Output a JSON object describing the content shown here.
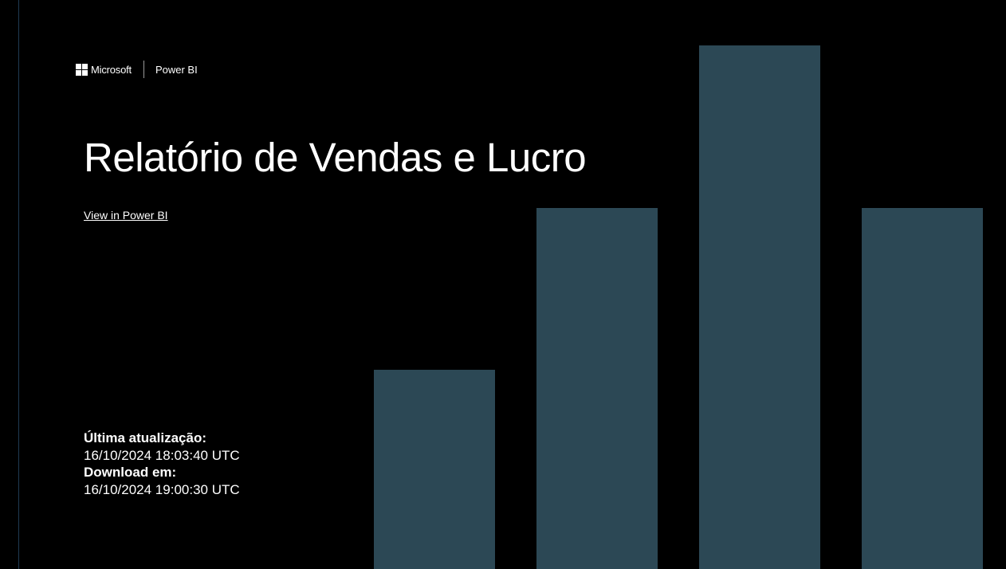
{
  "header": {
    "microsoft_label": "Microsoft",
    "product_label": "Power BI"
  },
  "report": {
    "title": "Relatório de Vendas e Lucro",
    "view_link_label": "View in Power BI"
  },
  "meta": {
    "last_refresh_label": "Última atualização:",
    "last_refresh_value": "16/10/2024 18:03:40 UTC",
    "download_label": "Download em:",
    "download_value": "16/10/2024 19:00:30 UTC"
  },
  "colors": {
    "background": "#000000",
    "bar": "#2c4855",
    "text": "#ffffff"
  },
  "decoration": {
    "bar_heights_relative": [
      0.38,
      0.69,
      1.0,
      0.69
    ]
  }
}
